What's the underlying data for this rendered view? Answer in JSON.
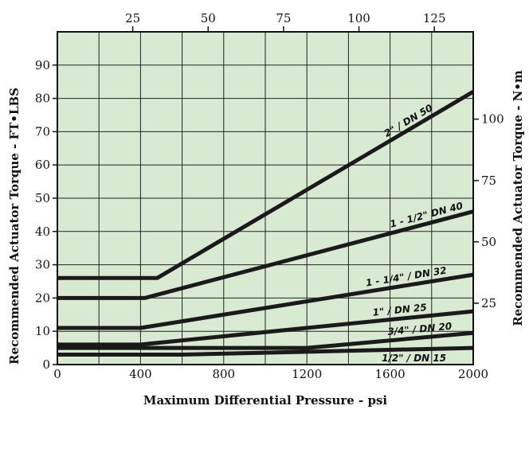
{
  "chart_data": {
    "type": "line",
    "title": "",
    "xlabel": "Maximum Differential Pressure - psi",
    "ylabel": "Recommended Actuator Torque - FT•LBS",
    "y2label": "Recommended Actuator Torque - N•m",
    "xlim": [
      0,
      2000
    ],
    "ylim": [
      0,
      100
    ],
    "x_ticks": [
      "0",
      "400",
      "800",
      "1200",
      "1600",
      "2000"
    ],
    "y_ticks": [
      "0",
      "10",
      "20",
      "30",
      "40",
      "50",
      "60",
      "70",
      "80",
      "90"
    ],
    "x2_ticks": [
      "25",
      "50",
      "75",
      "100",
      "125"
    ],
    "y2_ticks": [
      "25",
      "50",
      "75",
      "100"
    ],
    "grid": true,
    "background_color": "#d9ead3",
    "line_color": "#1a1a1a",
    "series": [
      {
        "name": "2\" / DN 50",
        "x": [
          0,
          480,
          2000
        ],
        "y": [
          26,
          26,
          82
        ]
      },
      {
        "name": "1 - 1/2\" DN 40",
        "x": [
          0,
          420,
          2000
        ],
        "y": [
          20,
          20,
          46
        ]
      },
      {
        "name": "1 - 1/4\" / DN 32",
        "x": [
          0,
          400,
          2000
        ],
        "y": [
          11,
          11,
          27
        ]
      },
      {
        "name": "1\" / DN 25",
        "x": [
          0,
          400,
          2000
        ],
        "y": [
          6,
          6,
          16
        ]
      },
      {
        "name": "3/4\" / DN 20",
        "x": [
          0,
          1200,
          2000
        ],
        "y": [
          5,
          5,
          9.5
        ]
      },
      {
        "name": "1/2\" / DN 15",
        "x": [
          0,
          600,
          2000
        ],
        "y": [
          3,
          3,
          5
        ]
      }
    ]
  }
}
